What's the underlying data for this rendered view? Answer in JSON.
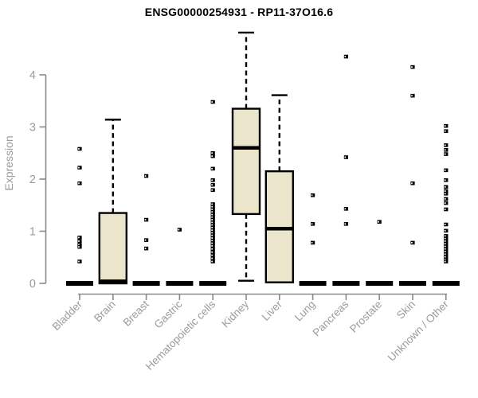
{
  "chart_data": {
    "type": "boxplot",
    "title": "ENSG00000254931 - RP11-37O16.6",
    "ylabel": "Expression",
    "xlabel": "",
    "ylim": [
      0,
      4.9
    ],
    "yticks": [
      0,
      1,
      2,
      3,
      4
    ],
    "grid": false,
    "legend": "none",
    "categories": [
      "Bladder",
      "Brain",
      "Breast",
      "Gastric",
      "Hematopoietic cells",
      "Kidney",
      "Liver",
      "Lung",
      "Pancreas",
      "Prostate",
      "Skin",
      "Unknown / Other"
    ],
    "boxes": [
      {
        "category": "Bladder",
        "q1": 0,
        "median": 0,
        "q3": 0,
        "whisker_low": 0,
        "whisker_high": 0,
        "outliers": [
          2.58,
          2.22,
          1.92,
          0.88,
          0.81,
          0.74,
          0.7,
          0.42
        ]
      },
      {
        "category": "Brain",
        "q1": 0,
        "median": 0.04,
        "q3": 1.35,
        "whisker_low": 0,
        "whisker_high": 3.14,
        "outliers": []
      },
      {
        "category": "Breast",
        "q1": 0,
        "median": 0,
        "q3": 0,
        "whisker_low": 0,
        "whisker_high": 0,
        "outliers": [
          2.06,
          1.22,
          0.83,
          0.67
        ]
      },
      {
        "category": "Gastric",
        "q1": 0,
        "median": 0,
        "q3": 0,
        "whisker_low": 0,
        "whisker_high": 0,
        "outliers": [
          1.03
        ]
      },
      {
        "category": "Hematopoietic cells",
        "q1": 0,
        "median": 0,
        "q3": 0,
        "whisker_low": 0,
        "whisker_high": 0,
        "outliers": [
          3.48,
          2.5,
          2.44,
          2.2,
          1.98,
          1.89,
          1.79,
          1.52,
          1.47,
          1.42,
          1.37,
          1.32,
          1.27,
          1.22,
          1.17,
          1.12,
          1.07,
          1.02,
          0.97,
          0.92,
          0.87,
          0.82,
          0.77,
          0.72,
          0.66,
          0.6,
          0.54,
          0.48,
          0.42
        ]
      },
      {
        "category": "Kidney",
        "q1": 1.33,
        "median": 2.6,
        "q3": 3.35,
        "whisker_low": 0.05,
        "whisker_high": 4.81,
        "outliers": []
      },
      {
        "category": "Liver",
        "q1": 0.02,
        "median": 1.05,
        "q3": 2.15,
        "whisker_low": 0.02,
        "whisker_high": 3.61,
        "outliers": []
      },
      {
        "category": "Lung",
        "q1": 0,
        "median": 0,
        "q3": 0,
        "whisker_low": 0,
        "whisker_high": 0,
        "outliers": [
          1.69,
          1.14,
          0.78
        ]
      },
      {
        "category": "Pancreas",
        "q1": 0,
        "median": 0,
        "q3": 0,
        "whisker_low": 0,
        "whisker_high": 0,
        "outliers": [
          4.35,
          2.42,
          1.43,
          1.14
        ]
      },
      {
        "category": "Prostate",
        "q1": 0,
        "median": 0,
        "q3": 0,
        "whisker_low": 0,
        "whisker_high": 0,
        "outliers": [
          1.18
        ]
      },
      {
        "category": "Skin",
        "q1": 0,
        "median": 0,
        "q3": 0,
        "whisker_low": 0,
        "whisker_high": 0,
        "outliers": [
          4.15,
          3.6,
          1.92,
          0.78
        ]
      },
      {
        "category": "Unknown / Other",
        "q1": 0,
        "median": 0,
        "q3": 0,
        "whisker_low": 0,
        "whisker_high": 0,
        "outliers": [
          3.02,
          2.92,
          2.65,
          2.56,
          2.48,
          2.17,
          1.98,
          1.85,
          1.77,
          1.72,
          1.62,
          1.54,
          1.42,
          1.13,
          1.01,
          0.91,
          0.86,
          0.81,
          0.76,
          0.71,
          0.66,
          0.61,
          0.56,
          0.51,
          0.46,
          0.42
        ]
      }
    ],
    "colors": {
      "background": "#ffffff",
      "box_fill": "#ebe6cb",
      "box_stroke": "#000000",
      "median": "#000000",
      "whisker": "#000000",
      "outlier": "#000000",
      "axis_line": "#8a8a8a",
      "tick_text": "#989ca0",
      "title_text": "#000000"
    }
  }
}
